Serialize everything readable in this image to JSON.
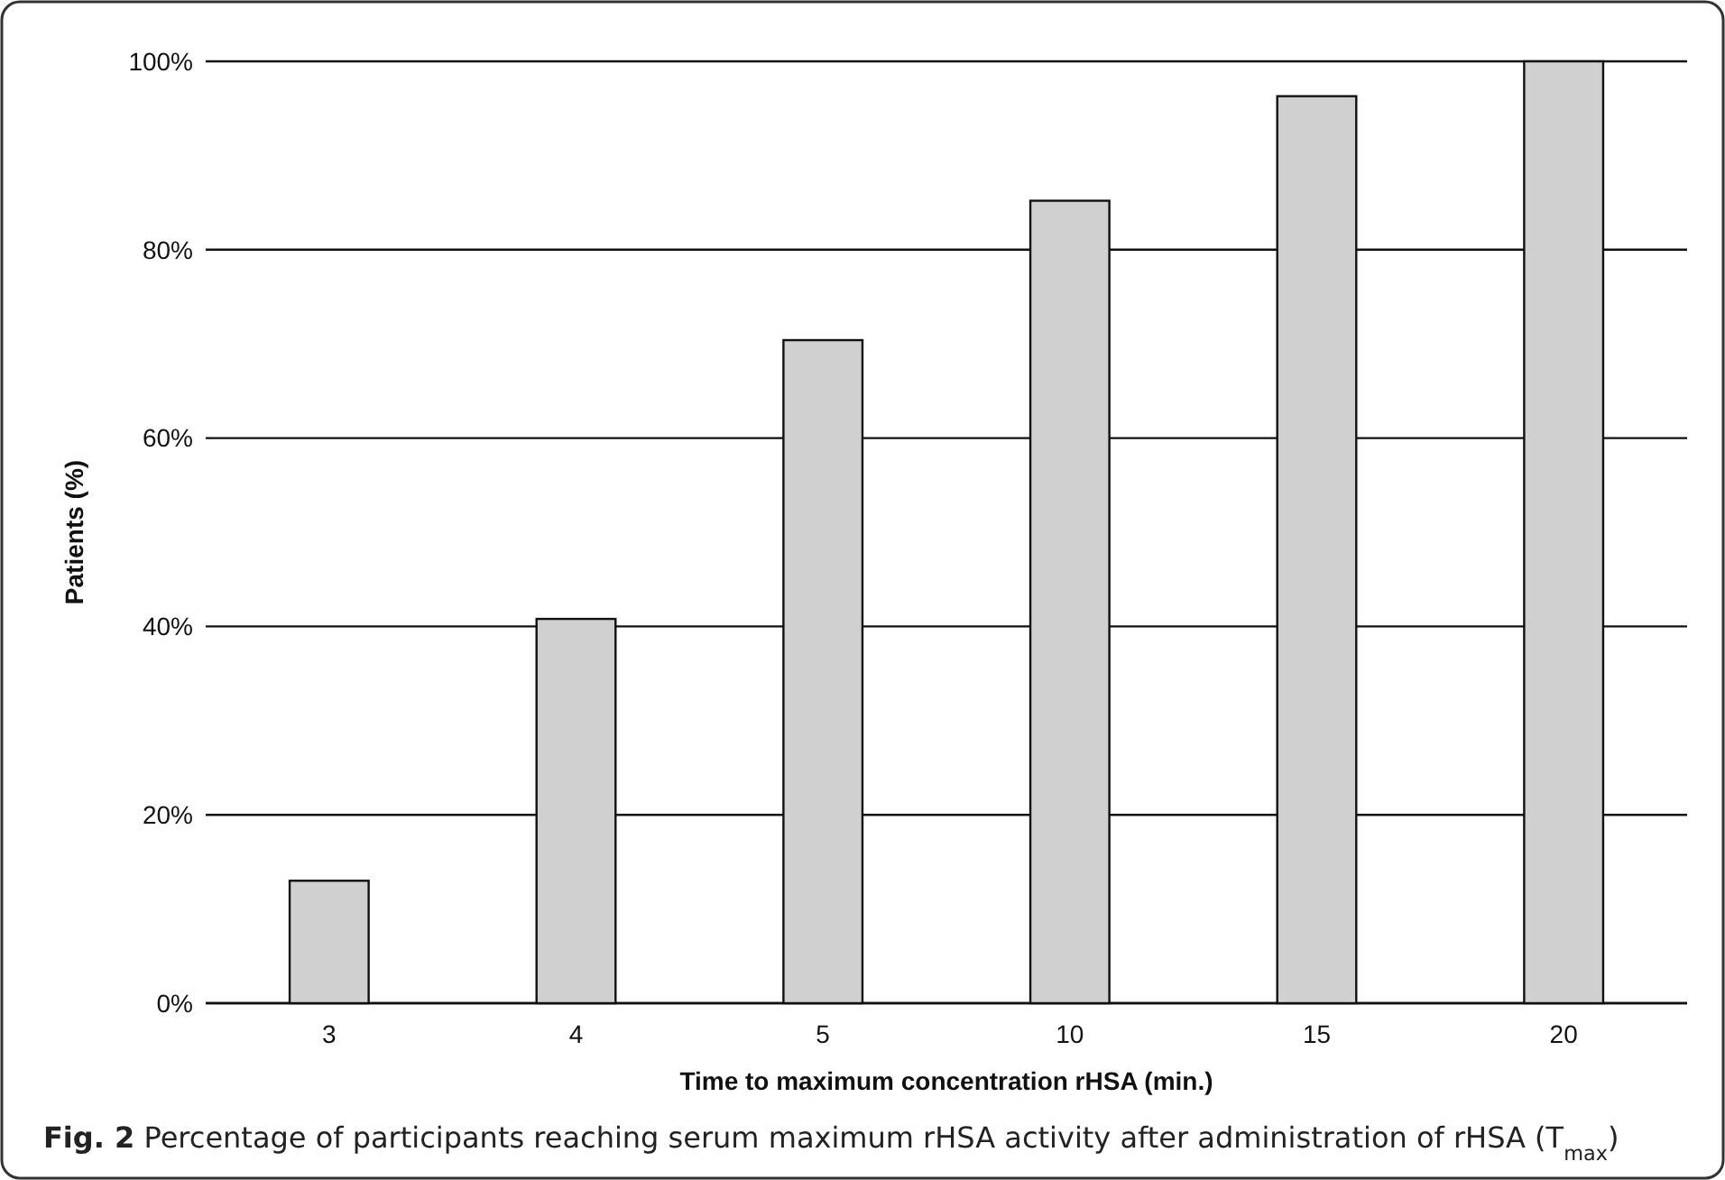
{
  "chart_data": {
    "type": "bar",
    "categories": [
      "3",
      "4",
      "5",
      "10",
      "15",
      "20"
    ],
    "values": [
      13.0,
      40.8,
      70.4,
      85.2,
      96.3,
      100
    ],
    "color": "#cfd0cf",
    "xlabel": "Time to maximum concentration rHSA (min.)",
    "ylabel": "Patients (%)",
    "ylim": [
      0,
      100
    ],
    "yticks": [
      {
        "value": 0,
        "label": "0%"
      },
      {
        "value": 20,
        "label": "20%"
      },
      {
        "value": 40,
        "label": "40%"
      },
      {
        "value": 60,
        "label": "60%"
      },
      {
        "value": 80,
        "label": "80%"
      },
      {
        "value": 100,
        "label": "100%"
      }
    ],
    "grid": "y",
    "annotations": [
      "Fig. 2 Percentage of participants reaching serum maximum rHSA activity after administration of rHSA (T$_{max}$)"
    ]
  }
}
